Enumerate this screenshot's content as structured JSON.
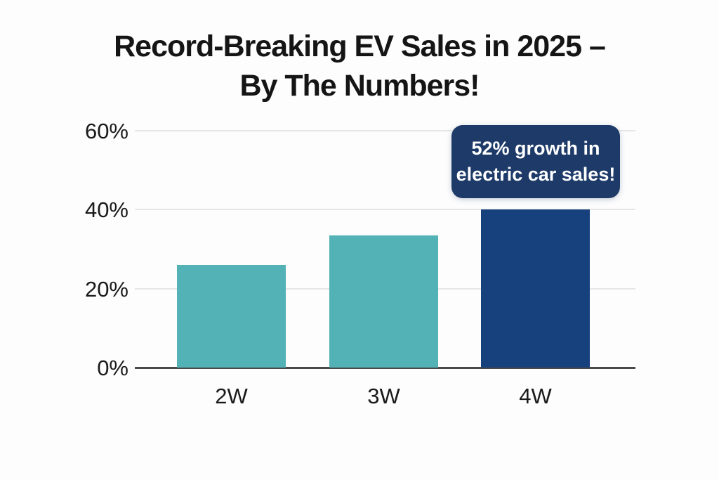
{
  "chart_data": {
    "type": "bar",
    "title": "Record-Breaking EV Sales in 2025 – By The Numbers!",
    "title_lines": [
      "Record-Breaking EV Sales in 2025 –",
      "By The Numbers!"
    ],
    "categories": [
      "2W",
      "3W",
      "4W"
    ],
    "values": [
      26,
      33.5,
      40
    ],
    "unit": "%",
    "bar_colors": [
      "#52b2b5",
      "#52b2b5",
      "#16417c"
    ],
    "yticks": [
      0,
      20,
      40,
      60
    ],
    "ytick_labels": [
      "0%",
      "20%",
      "40%",
      "60%"
    ],
    "ylim": [
      0,
      60
    ],
    "grid": "horizontal-only",
    "legend": "none",
    "annotation": {
      "lines": [
        "52% growth in",
        "electric car sales!"
      ],
      "text": "52% growth in electric car sales!",
      "bg_color": "#1d3a68",
      "text_color": "#ffffff",
      "target_category": "4W"
    },
    "colors": {
      "teal_bar": "#52b2b5",
      "navy_bar": "#16417c",
      "callout_bg": "#1d3a68",
      "gridline": "#e6e6e6",
      "axis_line": "#4a4a4a",
      "text": "#1a1a1a",
      "background": "#fdfdfd"
    }
  }
}
